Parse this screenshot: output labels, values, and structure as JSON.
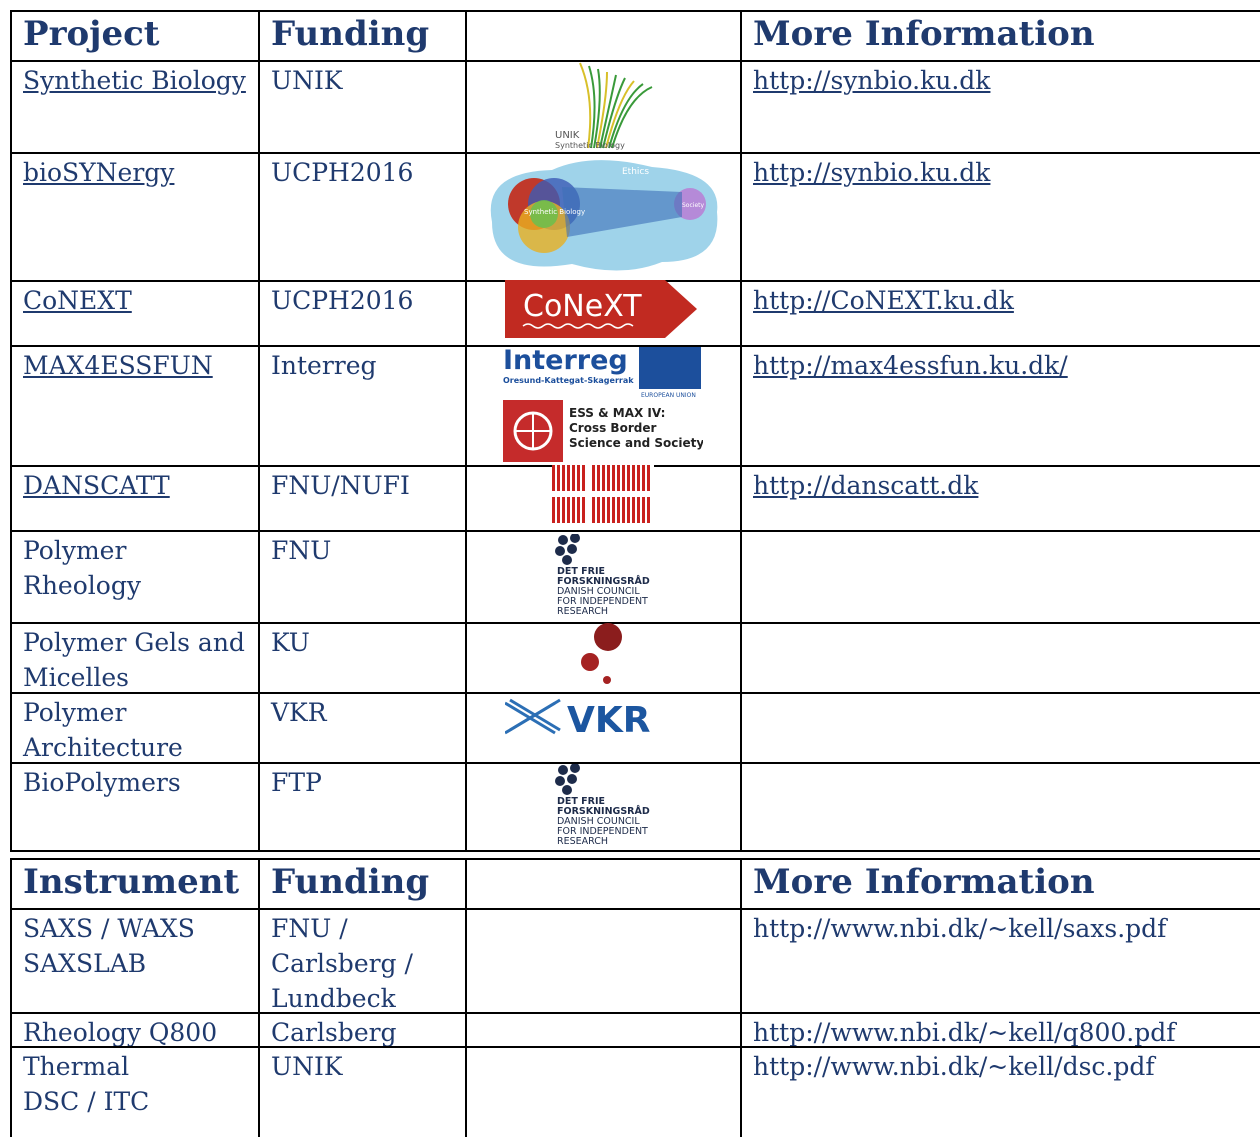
{
  "projects": {
    "header": {
      "project": "Project",
      "funding": "Funding",
      "info": "More Information"
    },
    "rows": [
      {
        "project": "Synthetic Biology",
        "funding": "UNIK",
        "info": "http://synbio.ku.dk",
        "logo": [
          "UNIK",
          "Synthetic Biology"
        ]
      },
      {
        "project": "bioSYNergy",
        "funding": "UCPH2016",
        "info": "http://synbio.ku.dk",
        "logo": [
          "Ethics",
          "Synthetic Biology",
          "Society"
        ]
      },
      {
        "project": "CoNEXT",
        "funding": "UCPH2016",
        "info": "http://CoNEXT.ku.dk",
        "logo": [
          "CoNeXT"
        ]
      },
      {
        "project": "MAX4ESSFUN",
        "funding": "Interreg",
        "info": "http://max4essfun.ku.dk/",
        "logo": [
          "Interreg",
          "Oresund-Kattegat-Skagerrak",
          "EUROPEAN UNION",
          "ESS & MAX IV:",
          "Cross Border",
          "Science and Society"
        ]
      },
      {
        "project": "DANSCATT",
        "funding": "FNU/NUFI",
        "info": "http://danscatt.dk"
      },
      {
        "project": "Polymer\nRheology",
        "funding": "FNU",
        "logo": [
          "DET FRIE",
          "FORSKNINGSRÅD",
          "DANISH COUNCIL",
          "FOR INDEPENDENT",
          "RESEARCH"
        ]
      },
      {
        "project": "Polymer Gels and\nMicelles",
        "funding": "KU"
      },
      {
        "project": "Polymer\nArchitecture",
        "funding": "VKR",
        "logo": [
          "VKR"
        ]
      },
      {
        "project": "BioPolymers",
        "funding": "FTP",
        "logo": [
          "DET FRIE",
          "FORSKNINGSRÅD",
          "DANISH COUNCIL",
          "FOR INDEPENDENT",
          "RESEARCH"
        ]
      }
    ]
  },
  "instruments": {
    "header": {
      "instrument": "Instrument",
      "funding": "Funding",
      "info": "More Information"
    },
    "rows": [
      {
        "instrument": "SAXS / WAXS\nSAXSLAB",
        "funding": "FNU /\nCarlsberg /\nLundbeck",
        "info": "http://www.nbi.dk/~kell/saxs.pdf"
      },
      {
        "instrument": "Rheology Q800",
        "funding": "Carlsberg",
        "info": "http://www.nbi.dk/~kell/q800.pdf"
      },
      {
        "instrument": "Thermal\nDSC / ITC",
        "funding": "UNIK",
        "info": "http://www.nbi.dk/~kell/dsc.pdf"
      }
    ]
  }
}
